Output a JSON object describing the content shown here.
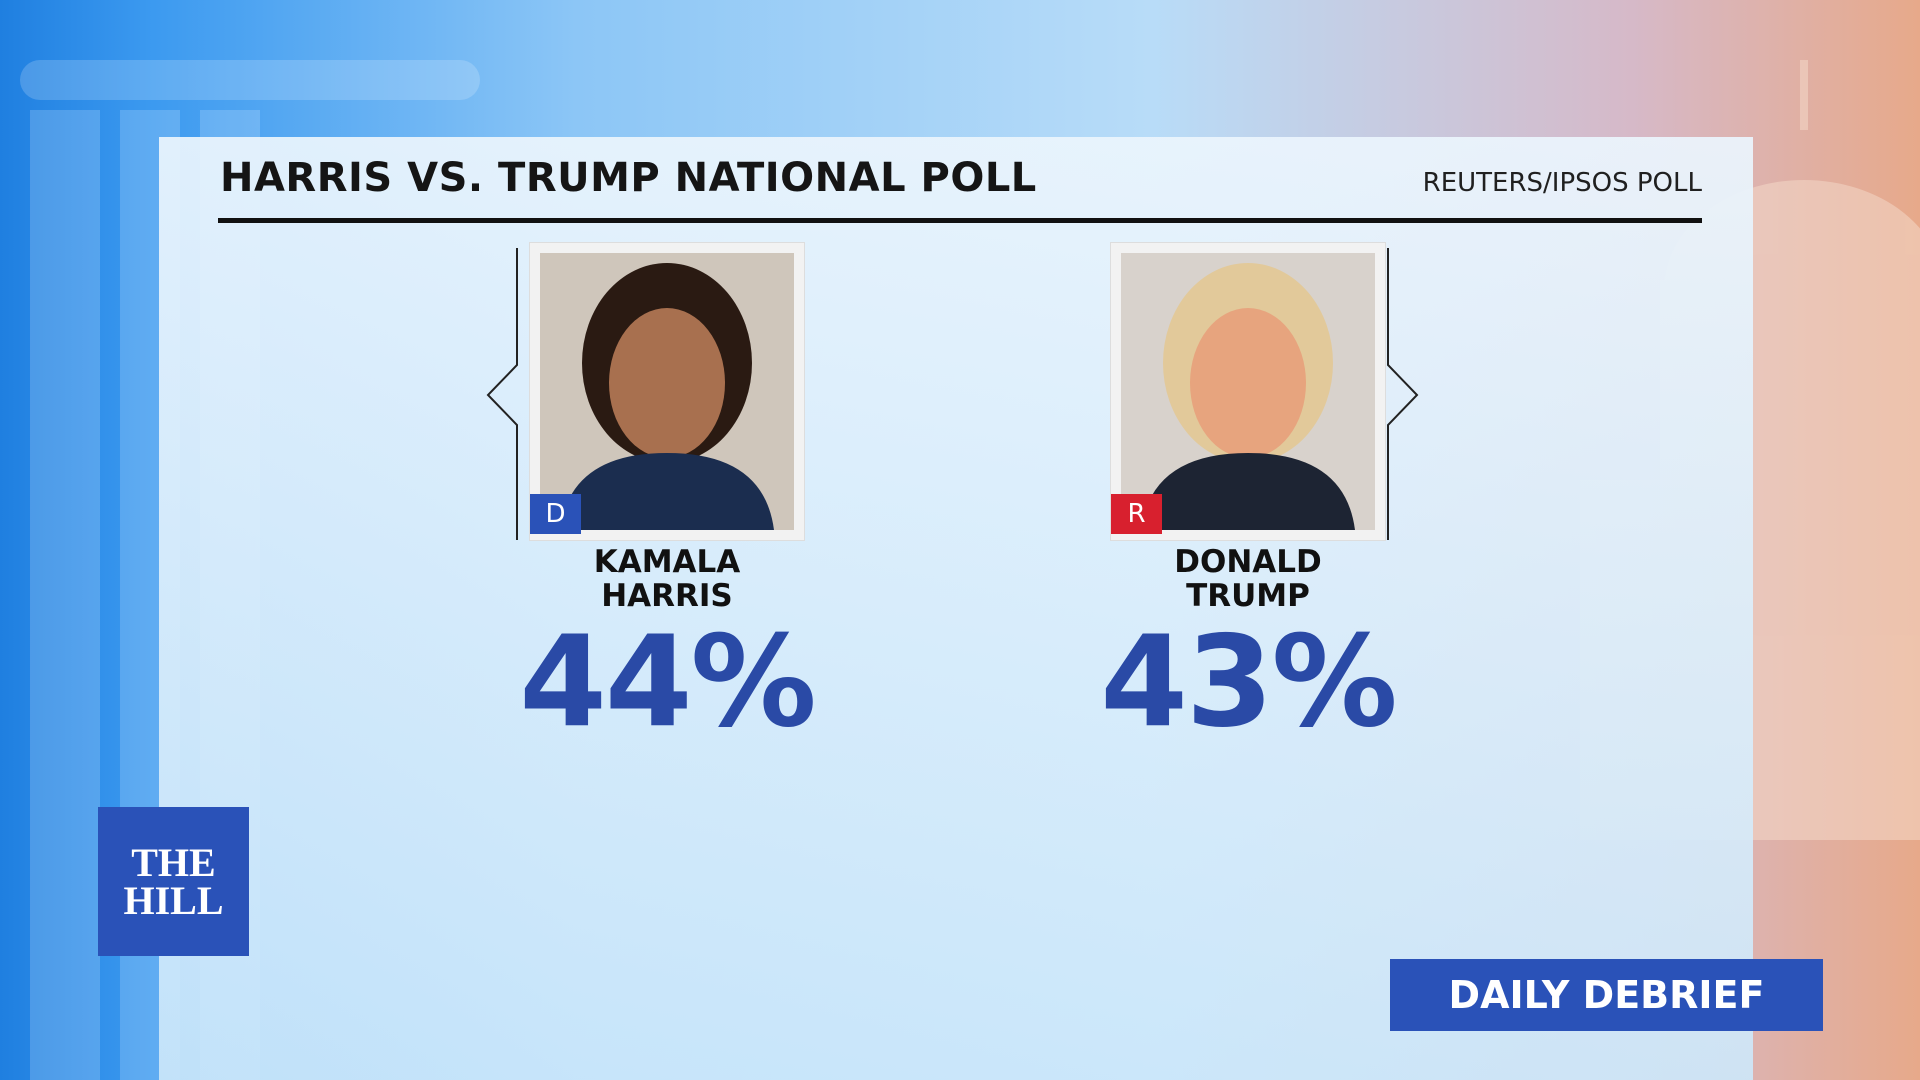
{
  "header": {
    "title": "HARRIS VS. TRUMP NATIONAL POLL",
    "source": "REUTERS/IPSOS POLL"
  },
  "candidates": [
    {
      "party": "D",
      "name_lines": [
        "KAMALA",
        "HARRIS"
      ],
      "percent": "44%"
    },
    {
      "party": "R",
      "name_lines": [
        "DONALD",
        "TRUMP"
      ],
      "percent": "43%"
    }
  ],
  "logo": {
    "lines": [
      "THE",
      "HILL"
    ]
  },
  "show_name": "DAILY DEBRIEF"
}
